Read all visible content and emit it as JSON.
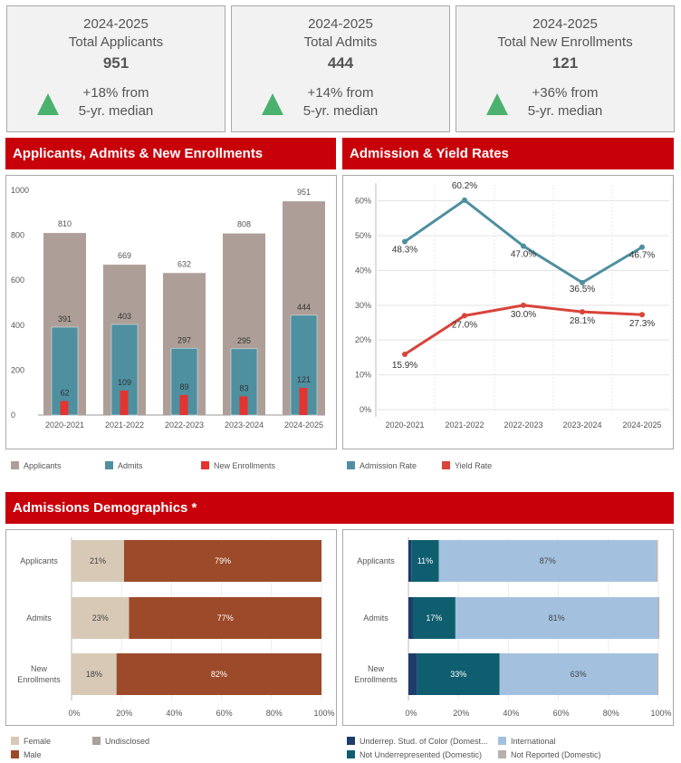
{
  "kpis": [
    {
      "year": "2024-2025",
      "label": "Total Applicants",
      "value": "951",
      "change": "+18% from",
      "basis": "5-yr. median"
    },
    {
      "year": "2024-2025",
      "label": "Total Admits",
      "value": "444",
      "change": "+14% from",
      "basis": "5-yr. median"
    },
    {
      "year": "2024-2025",
      "label": "Total New Enrollments",
      "value": "121",
      "change": "+36% from",
      "basis": "5-yr. median"
    }
  ],
  "sections": {
    "bar_title": "Applicants, Admits & New Enrollments",
    "rate_title": "Admission & Yield Rates",
    "demo_title": "Admissions Demographics *"
  },
  "colors": {
    "applicants": "#ad9f98",
    "admits": "#4e8fa0",
    "enroll": "#e3342f",
    "admission_rate": "#4e8fa0",
    "yield_rate": "#d9443b",
    "female": "#d7c9b5",
    "male": "#9c4a29",
    "undisclosed": "#a8a19c",
    "urm": "#1d3b6b",
    "not_urm": "#0f5e70",
    "intl": "#a3c1df",
    "not_reported": "#b8b0ab",
    "positive": "#4ab26e",
    "brand": "#c8000a"
  },
  "chart_data": [
    {
      "type": "bar",
      "categories": [
        "2020-2021",
        "2021-2022",
        "2022-2023",
        "2023-2024",
        "2024-2025"
      ],
      "series": [
        {
          "name": "Applicants",
          "values": [
            810,
            669,
            632,
            808,
            951
          ]
        },
        {
          "name": "Admits",
          "values": [
            391,
            403,
            297,
            295,
            444
          ]
        },
        {
          "name": "New Enrollments",
          "values": [
            62,
            109,
            89,
            83,
            121
          ]
        }
      ],
      "yticks": [
        "1000",
        "800",
        "600",
        "400",
        "200",
        "0"
      ],
      "ylim": [
        0,
        1000
      ],
      "legend": [
        "Applicants",
        "Admits",
        "New Enrollments"
      ]
    },
    {
      "type": "line",
      "categories": [
        "2020-2021",
        "2021-2022",
        "2022-2023",
        "2023-2024",
        "2024-2025"
      ],
      "series": [
        {
          "name": "Admission Rate",
          "values": [
            48.3,
            60.2,
            47.0,
            36.5,
            46.7
          ],
          "labels": [
            "48.3%",
            "60.2%",
            "47.0%",
            "36.5%",
            "46.7%"
          ]
        },
        {
          "name": "Yield Rate",
          "values": [
            15.9,
            27.0,
            30.0,
            28.1,
            27.3
          ],
          "labels": [
            "15.9%",
            "27.0%",
            "30.0%",
            "28.1%",
            "27.3%"
          ]
        }
      ],
      "yticks": [
        "60%",
        "50%",
        "40%",
        "30%",
        "20%",
        "10%",
        "0%"
      ],
      "ylim": [
        0,
        62
      ],
      "legend": [
        "Admission Rate",
        "Yield Rate"
      ]
    },
    {
      "type": "bar",
      "orientation": "horizontal-stacked",
      "categories": [
        "Applicants",
        "Admits",
        "New Enrollments"
      ],
      "series": [
        {
          "name": "Female",
          "values": [
            21,
            23,
            18
          ],
          "labels": [
            "21%",
            "23%",
            "18%"
          ]
        },
        {
          "name": "Male",
          "values": [
            79,
            77,
            82
          ],
          "labels": [
            "79%",
            "77%",
            "82%"
          ]
        },
        {
          "name": "Undisclosed",
          "values": [
            0,
            0,
            0
          ],
          "labels": [
            "",
            "",
            ""
          ]
        }
      ],
      "xticks": [
        "0%",
        "20%",
        "40%",
        "60%",
        "80%",
        "100%"
      ],
      "xlim": [
        0,
        100
      ],
      "legend": [
        "Female",
        "Undisclosed",
        "Male"
      ]
    },
    {
      "type": "bar",
      "orientation": "horizontal-stacked",
      "categories": [
        "Applicants",
        "Admits",
        "New Enrollments"
      ],
      "series": [
        {
          "name": "Underrep. Stud. of Color (Domest...",
          "values": [
            1.2,
            1.8,
            3.5
          ],
          "labels": [
            "",
            "",
            ""
          ]
        },
        {
          "name": "Not Underrepresented (Domestic)",
          "values": [
            11,
            17,
            33
          ],
          "labels": [
            "11%",
            "17%",
            "33%"
          ]
        },
        {
          "name": "International",
          "values": [
            87,
            81,
            63
          ],
          "labels": [
            "87%",
            "81%",
            "63%"
          ]
        },
        {
          "name": "Not Reported (Domestic)",
          "values": [
            0.5,
            0.6,
            0.5
          ],
          "labels": [
            "",
            "",
            ""
          ]
        }
      ],
      "xticks": [
        "0%",
        "20%",
        "40%",
        "60%",
        "80%",
        "100%"
      ],
      "xlim": [
        0,
        100
      ],
      "legend": [
        "Underrep. Stud. of Color (Domest...",
        "International",
        "Not Underrepresented (Domestic)",
        "Not Reported (Domestic)"
      ]
    }
  ]
}
